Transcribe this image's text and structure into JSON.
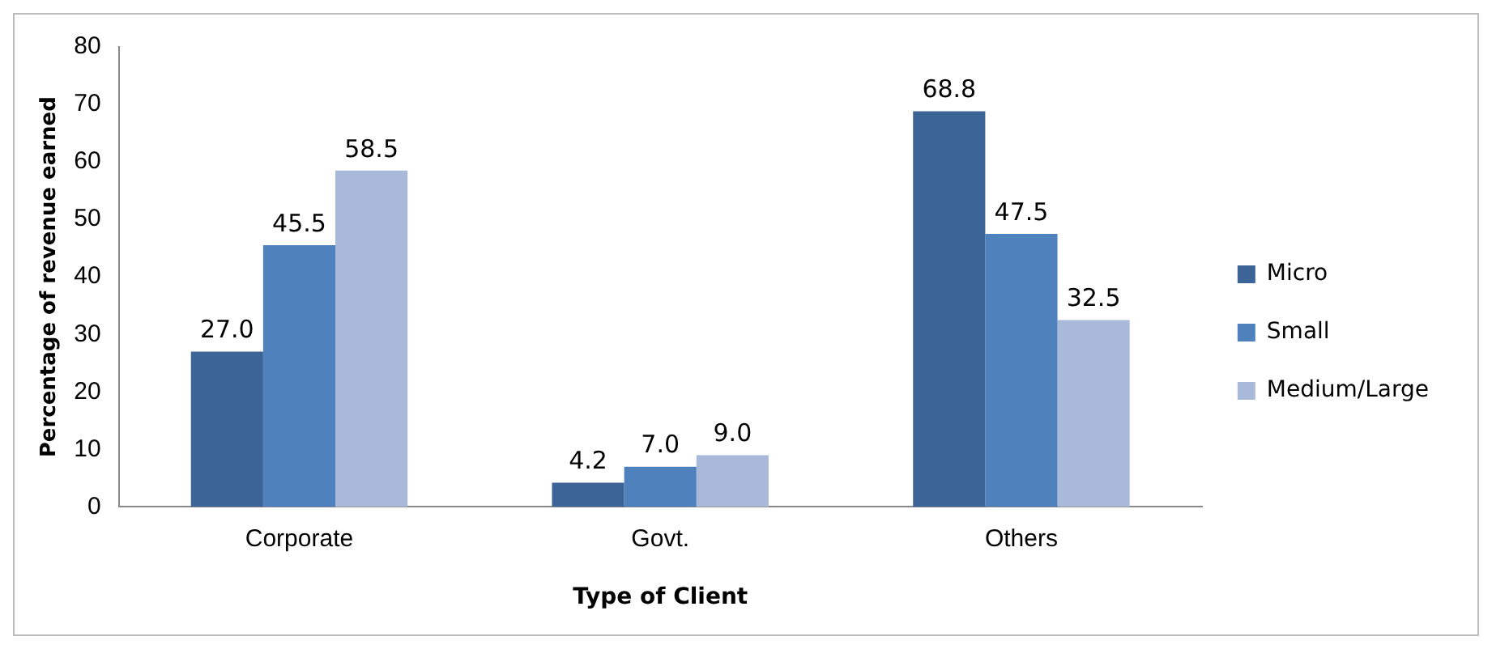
{
  "chart_data": {
    "type": "bar",
    "xlabel": "Type of Client",
    "ylabel": "Percentage of revenue earned",
    "categories": [
      "Corporate",
      "Govt.",
      "Others"
    ],
    "series": [
      {
        "name": "Micro",
        "color": "#3c6496",
        "values": [
          27.0,
          4.2,
          68.8
        ],
        "value_labels": [
          "27.0",
          "4.2",
          "68.8"
        ]
      },
      {
        "name": "Small",
        "color": "#4f81bd",
        "values": [
          45.5,
          7.0,
          47.5
        ],
        "value_labels": [
          "45.5",
          "7.0",
          "47.5"
        ]
      },
      {
        "name": "Medium/Large",
        "color": "#a8b9d9",
        "values": [
          58.5,
          9.0,
          32.5
        ],
        "value_labels": [
          "58.5",
          "9.0",
          "32.5"
        ]
      }
    ],
    "ylim": [
      0,
      80
    ],
    "yticks": [
      0,
      10,
      20,
      30,
      40,
      50,
      60,
      70,
      80
    ],
    "grid": false,
    "legend": "right"
  }
}
